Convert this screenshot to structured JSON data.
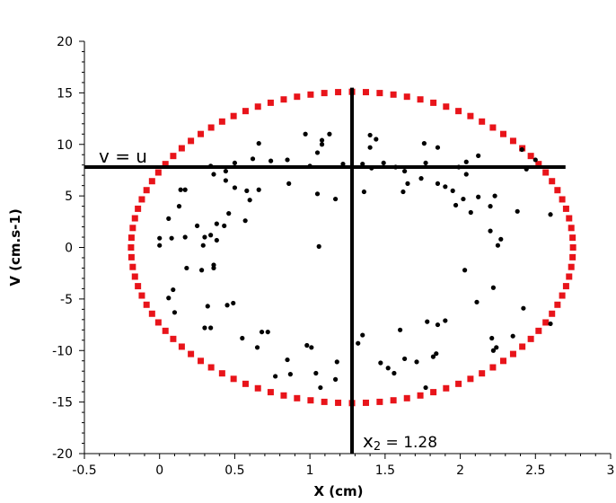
{
  "chart_data": {
    "type": "scatter",
    "title": "",
    "xlabel": "X (cm)",
    "ylabel": "V (cm.s-1)",
    "xlim": [
      -0.5,
      3
    ],
    "ylim": [
      -20,
      20
    ],
    "x_ticks": [
      -0.5,
      0,
      0.5,
      1,
      1.5,
      2,
      2.5,
      3
    ],
    "y_ticks": [
      -20,
      -15,
      -10,
      -5,
      0,
      5,
      10,
      15,
      20
    ],
    "grid": false,
    "colors": {
      "ellipse": "#e8141a",
      "points": "#000000",
      "lines": "#000000"
    },
    "ellipse_series": {
      "center_x": 1.28,
      "center_y": 0,
      "semi_axis_x": 1.47,
      "semi_axis_y": 15.1,
      "point_count": 100
    },
    "black_points": [
      [
        0.97,
        11.0
      ],
      [
        1.08,
        10.4
      ],
      [
        1.13,
        11.0
      ],
      [
        0.66,
        10.1
      ],
      [
        0.62,
        8.6
      ],
      [
        0.74,
        8.4
      ],
      [
        0.85,
        8.5
      ],
      [
        1.05,
        9.2
      ],
      [
        1.08,
        10.0
      ],
      [
        1.0,
        7.9
      ],
      [
        1.22,
        8.1
      ],
      [
        0.5,
        8.2
      ],
      [
        0.44,
        7.4
      ],
      [
        0.34,
        7.9
      ],
      [
        0.36,
        7.1
      ],
      [
        0.44,
        6.5
      ],
      [
        0.5,
        5.8
      ],
      [
        0.58,
        5.5
      ],
      [
        0.66,
        5.6
      ],
      [
        0.86,
        6.2
      ],
      [
        1.05,
        5.2
      ],
      [
        1.17,
        4.7
      ],
      [
        0.6,
        4.6
      ],
      [
        0.57,
        2.6
      ],
      [
        0.46,
        3.3
      ],
      [
        0.43,
        2.1
      ],
      [
        0.38,
        2.3
      ],
      [
        0.34,
        1.2
      ],
      [
        0.25,
        2.1
      ],
      [
        0.17,
        5.6
      ],
      [
        0.14,
        5.6
      ],
      [
        0.13,
        4.0
      ],
      [
        0.06,
        2.8
      ],
      [
        0.0,
        0.9
      ],
      [
        0.0,
        0.2
      ],
      [
        0.08,
        0.9
      ],
      [
        0.17,
        1.0
      ],
      [
        0.3,
        1.0
      ],
      [
        0.38,
        0.7
      ],
      [
        0.29,
        0.2
      ],
      [
        0.18,
        -2.0
      ],
      [
        0.28,
        -2.2
      ],
      [
        0.36,
        -2.0
      ],
      [
        0.36,
        -1.7
      ],
      [
        0.09,
        -4.1
      ],
      [
        0.06,
        -4.9
      ],
      [
        0.1,
        -6.3
      ],
      [
        0.32,
        -5.7
      ],
      [
        0.45,
        -5.6
      ],
      [
        0.49,
        -5.4
      ],
      [
        0.3,
        -7.8
      ],
      [
        0.34,
        -7.8
      ],
      [
        0.55,
        -8.8
      ],
      [
        0.65,
        -9.7
      ],
      [
        0.68,
        -8.2
      ],
      [
        0.72,
        -8.2
      ],
      [
        0.85,
        -10.9
      ],
      [
        0.77,
        -12.5
      ],
      [
        0.87,
        -12.3
      ],
      [
        0.98,
        -9.5
      ],
      [
        1.01,
        -9.7
      ],
      [
        1.04,
        -12.2
      ],
      [
        1.07,
        -13.6
      ],
      [
        1.18,
        -11.1
      ],
      [
        1.06,
        0.1
      ],
      [
        1.4,
        10.9
      ],
      [
        1.44,
        10.5
      ],
      [
        1.49,
        8.2
      ],
      [
        1.4,
        9.7
      ],
      [
        1.35,
        8.1
      ],
      [
        1.41,
        7.7
      ],
      [
        1.36,
        5.4
      ],
      [
        1.57,
        7.8
      ],
      [
        1.63,
        7.4
      ],
      [
        1.74,
        6.7
      ],
      [
        1.65,
        6.2
      ],
      [
        1.62,
        5.4
      ],
      [
        1.85,
        6.2
      ],
      [
        1.9,
        5.9
      ],
      [
        1.95,
        5.5
      ],
      [
        1.99,
        7.8
      ],
      [
        2.04,
        8.3
      ],
      [
        2.04,
        7.1
      ],
      [
        2.12,
        8.9
      ],
      [
        1.76,
        10.1
      ],
      [
        1.85,
        9.7
      ],
      [
        1.77,
        8.2
      ],
      [
        2.02,
        4.7
      ],
      [
        1.97,
        4.1
      ],
      [
        2.07,
        3.4
      ],
      [
        2.12,
        4.9
      ],
      [
        2.2,
        4.0
      ],
      [
        2.23,
        5.0
      ],
      [
        2.41,
        9.5
      ],
      [
        2.44,
        7.6
      ],
      [
        2.5,
        8.5
      ],
      [
        2.38,
        3.5
      ],
      [
        2.6,
        3.2
      ],
      [
        2.2,
        1.6
      ],
      [
        2.25,
        0.2
      ],
      [
        2.27,
        0.8
      ],
      [
        2.03,
        -2.2
      ],
      [
        2.22,
        -3.9
      ],
      [
        2.11,
        -5.3
      ],
      [
        2.42,
        -5.9
      ],
      [
        2.6,
        -7.4
      ],
      [
        2.35,
        -8.6
      ],
      [
        2.21,
        -8.8
      ],
      [
        2.22,
        -10.0
      ],
      [
        2.24,
        -9.7
      ],
      [
        1.9,
        -7.1
      ],
      [
        1.85,
        -7.5
      ],
      [
        1.84,
        -10.3
      ],
      [
        1.82,
        -10.6
      ],
      [
        1.78,
        -7.2
      ],
      [
        1.6,
        -8.0
      ],
      [
        1.63,
        -10.8
      ],
      [
        1.47,
        -11.2
      ],
      [
        1.52,
        -11.7
      ],
      [
        1.56,
        -12.2
      ],
      [
        1.71,
        -11.1
      ],
      [
        1.77,
        -13.6
      ],
      [
        1.32,
        -9.3
      ],
      [
        1.35,
        -8.5
      ],
      [
        1.17,
        -12.8
      ]
    ],
    "annotations": {
      "horizontal_line": {
        "y": 7.8,
        "x_start": -0.5,
        "x_end": 2.7,
        "label": "v = u"
      },
      "vertical_line": {
        "x": 1.28,
        "y_start": -20,
        "y_end": 15.5,
        "label_prefix": "x",
        "label_subscript": "2",
        "label_value": "= 1.28"
      }
    }
  }
}
